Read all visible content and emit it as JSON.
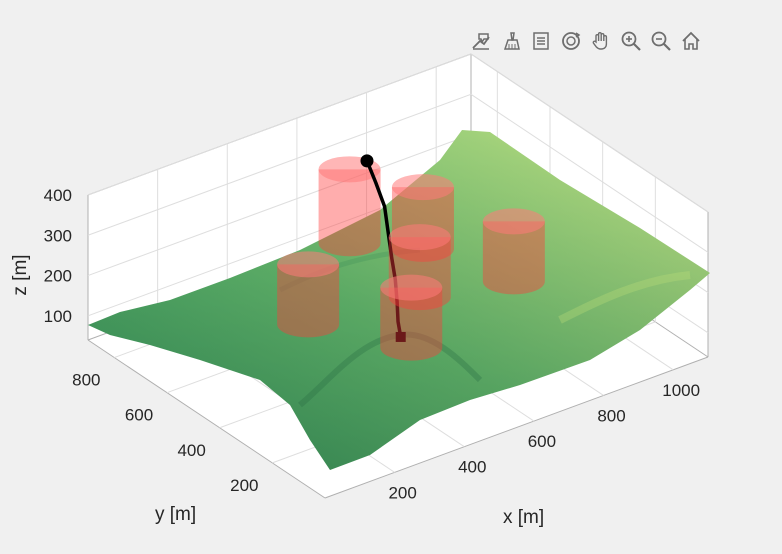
{
  "toolbar": {
    "items": [
      "data-tip-icon",
      "brush-icon",
      "legend-icon",
      "rotate-3d-icon",
      "pan-hand-icon",
      "zoom-in-icon",
      "zoom-out-icon",
      "home-icon"
    ]
  },
  "colors": {
    "terrain_low": "#2e8b57",
    "terrain_high": "#d4e87a",
    "obstacle": "#ff3b3b",
    "path": "#000000",
    "axes_bg": "#ffffff",
    "figure_bg": "#f0f0f0"
  },
  "chart_data": {
    "type": "surface3d",
    "title": "",
    "xlabel": "x [m]",
    "ylabel": "y [m]",
    "zlabel": "z [m]",
    "xlim": [
      0,
      1100
    ],
    "ylim": [
      0,
      900
    ],
    "zlim": [
      40,
      400
    ],
    "xticks": [
      "200",
      "400",
      "600",
      "800",
      "1000"
    ],
    "xtick_values": [
      200,
      400,
      600,
      800,
      1000
    ],
    "yticks": [
      "200",
      "400",
      "600",
      "800"
    ],
    "ytick_values": [
      200,
      400,
      600,
      800
    ],
    "zticks": [
      "100",
      "200",
      "300",
      "400"
    ],
    "ztick_values": [
      100,
      200,
      300,
      400
    ],
    "grid": true,
    "obstacles": [
      {
        "shape": "cylinder",
        "x": 600,
        "y": 700,
        "radius": 80,
        "z_top": 360
      },
      {
        "shape": "cylinder",
        "x": 720,
        "y": 580,
        "radius": 80,
        "z_top": 330
      },
      {
        "shape": "cylinder",
        "x": 360,
        "y": 540,
        "radius": 80,
        "z_top": 270
      },
      {
        "shape": "cylinder",
        "x": 620,
        "y": 460,
        "radius": 80,
        "z_top": 290
      },
      {
        "shape": "cylinder",
        "x": 860,
        "y": 420,
        "radius": 80,
        "z_top": 270
      },
      {
        "shape": "cylinder",
        "x": 520,
        "y": 360,
        "radius": 80,
        "z_top": 240
      }
    ],
    "path": {
      "start": {
        "x": 650,
        "y": 700,
        "z": 365
      },
      "end": {
        "x": 520,
        "y": 400,
        "z": 100
      },
      "points": [
        {
          "x": 650,
          "y": 700,
          "z": 365
        },
        {
          "x": 645,
          "y": 660,
          "z": 330
        },
        {
          "x": 640,
          "y": 620,
          "z": 290
        },
        {
          "x": 620,
          "y": 580,
          "z": 250
        },
        {
          "x": 600,
          "y": 540,
          "z": 210
        },
        {
          "x": 580,
          "y": 500,
          "z": 180
        },
        {
          "x": 555,
          "y": 460,
          "z": 150
        },
        {
          "x": 535,
          "y": 430,
          "z": 120
        },
        {
          "x": 520,
          "y": 400,
          "z": 100
        }
      ]
    }
  }
}
